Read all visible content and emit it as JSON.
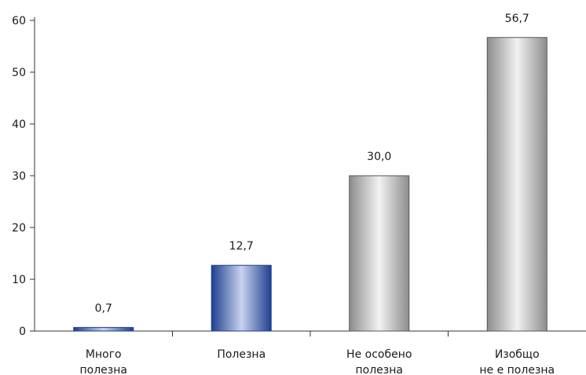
{
  "chart_data": {
    "type": "bar",
    "categories": [
      [
        "Много",
        "полезна"
      ],
      [
        "Полезна"
      ],
      [
        "Не особено",
        "полезна"
      ],
      [
        "Изобщо",
        "не е полезна"
      ]
    ],
    "values": [
      0.7,
      12.7,
      30.0,
      56.7
    ],
    "data_labels": [
      "0,7",
      "12,7",
      "30,0",
      "56,7"
    ],
    "ylim": [
      0,
      60
    ],
    "yticks": [
      0,
      10,
      20,
      30,
      40,
      50,
      60
    ],
    "ytick_labels": [
      "0",
      "10",
      "20",
      "30",
      "40",
      "50",
      "60"
    ],
    "grid": false,
    "bar_styles": [
      "blue",
      "blue",
      "gray",
      "gray"
    ],
    "colors": {
      "blue_edge": "#1f3f8f",
      "blue_mid": "#c8d2ee",
      "gray_edge": "#8c8c8c",
      "gray_mid": "#f2f2f2"
    }
  }
}
